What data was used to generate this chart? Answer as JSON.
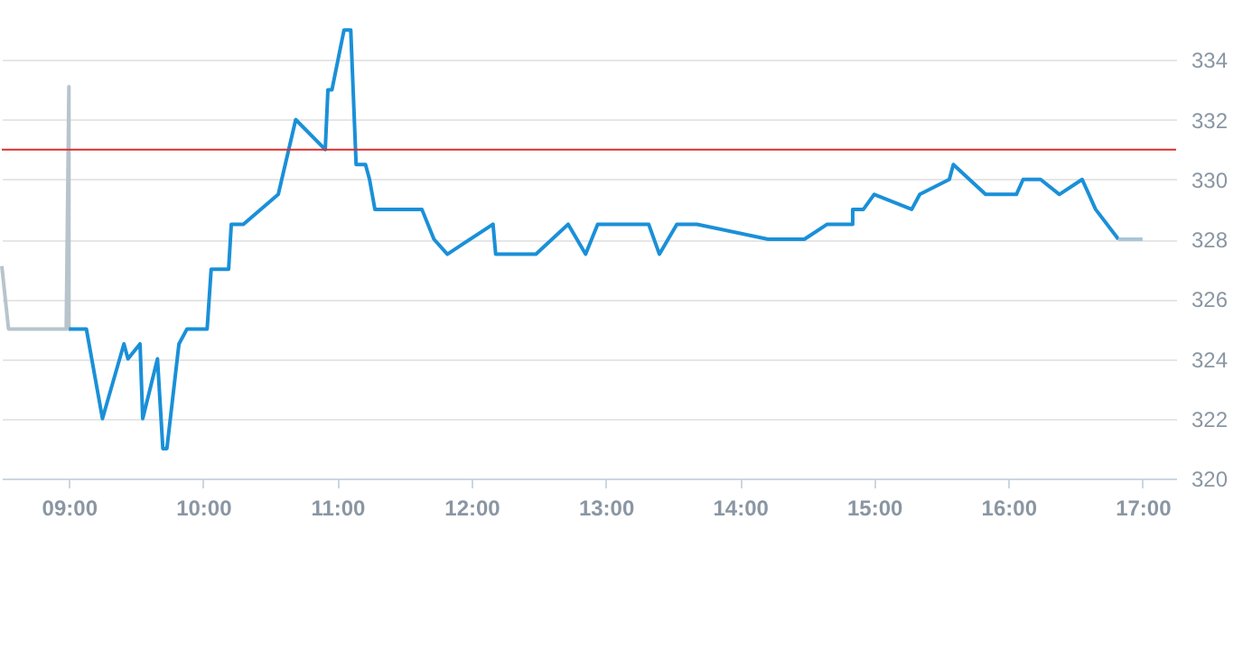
{
  "chart_data": {
    "type": "line",
    "xlim": [
      8.5,
      17.25
    ],
    "ylim": [
      320,
      336
    ],
    "xticks": [
      {
        "value": 9,
        "label": "09:00"
      },
      {
        "value": 10,
        "label": "10:00"
      },
      {
        "value": 11,
        "label": "11:00"
      },
      {
        "value": 12,
        "label": "12:00"
      },
      {
        "value": 13,
        "label": "13:00"
      },
      {
        "value": 14,
        "label": "14:00"
      },
      {
        "value": 15,
        "label": "15:00"
      },
      {
        "value": 16,
        "label": "16:00"
      },
      {
        "value": 17,
        "label": "17:00"
      }
    ],
    "yticks": [
      320,
      322,
      324,
      326,
      328,
      330,
      332,
      334
    ],
    "grid": "y",
    "legend": false,
    "marker": "none",
    "line_style": "solid",
    "series": [
      {
        "color": "#b8c4cc",
        "x": [
          8.5,
          8.55,
          8.98,
          9.0,
          9.0,
          9.01
        ],
        "values": [
          327.1,
          325,
          325,
          333.1,
          325,
          325
        ]
      },
      {
        "color": "#1a90d8",
        "x": [
          9.0,
          9.13,
          9.25,
          9.41,
          9.44,
          9.53,
          9.55,
          9.66,
          9.7,
          9.73,
          9.82,
          9.88,
          10.03,
          10.06,
          10.19,
          10.21,
          10.3,
          10.56,
          10.69,
          10.91,
          10.93,
          10.96,
          11.05,
          11.1,
          11.14,
          11.21,
          11.24,
          11.28,
          11.63,
          11.72,
          11.82,
          12.16,
          12.18,
          12.48,
          12.72,
          12.85,
          12.94,
          13.32,
          13.4,
          13.53,
          13.68,
          14.21,
          14.48,
          14.65,
          14.84,
          14.84,
          14.92,
          15.0,
          15.28,
          15.34,
          15.56,
          15.59,
          15.83,
          16.06,
          16.11,
          16.24,
          16.38,
          16.55,
          16.65,
          16.82
        ],
        "values": [
          325,
          325,
          322,
          324.5,
          324,
          324.5,
          322,
          324,
          321,
          321,
          324.5,
          325,
          325,
          327,
          327,
          328.5,
          328.5,
          329.5,
          332,
          331,
          333,
          333,
          335,
          335,
          330.5,
          330.5,
          330,
          329,
          329,
          328,
          327.5,
          328.5,
          327.5,
          327.5,
          328.5,
          327.5,
          328.5,
          328.5,
          327.5,
          328.5,
          328.5,
          328,
          328,
          328.5,
          328.5,
          329,
          329,
          329.5,
          329,
          329.5,
          330,
          330.5,
          329.5,
          329.5,
          330,
          330,
          329.5,
          330,
          329,
          328
        ]
      },
      {
        "color": "#a9c6d6",
        "x": [
          16.82,
          17.0
        ],
        "values": [
          328,
          328
        ]
      }
    ],
    "ref_lines": [
      {
        "axis": "y",
        "value": 331,
        "color": "#d9302c"
      }
    ]
  }
}
